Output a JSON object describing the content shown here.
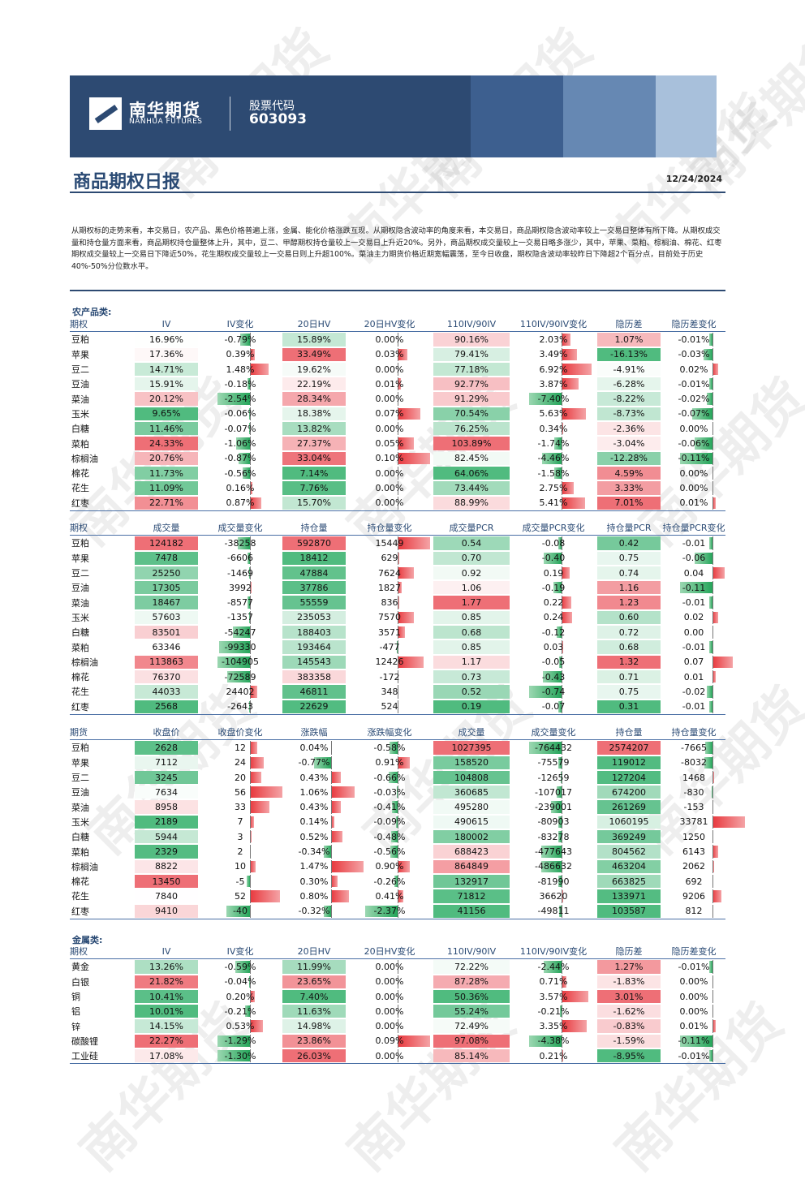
{
  "header": {
    "brand_cn": "南华期货",
    "brand_en": "NANHUA FUTURES",
    "code_label": "股票代码",
    "code_value": "603093",
    "title": "商品期权日报",
    "date": "12/24/2024",
    "watermark": "南华期货"
  },
  "summary": "从期权标的走势来看，本交易日，农产品、黑色价格普遍上涨，金属、能化价格涨跌互现。从期权隐含波动率的角度来看，本交易日，商品期权隐含波动率较上一交易日整体有所下降。从期权成交量和持仓量方面来看，商品期权持仓量整体上升，其中，豆二、甲醇期权持仓量较上一交易日上升近20%。另外，商品期权成交量较上一交易日略多涨少，其中，苹果、菜粕、棕榈油、棉花、红枣期权成交量较上一交易日下降近50%，花生期权成交量较上一交易日则上升超100%。菜油主力期货价格近期宽幅震荡，至今日收盘，期权隐含波动率较昨日下降超2个百分点，目前处于历史40%-50%分位数水平。",
  "colors": {
    "red": "#e8383d",
    "green": "#25a55a",
    "navy": "#2d4a72"
  },
  "sections": {
    "agri": "农产品类:",
    "metal": "金属类:"
  },
  "tables": [
    {
      "id": "agri-iv",
      "headers": [
        "期权",
        "IV",
        "IV变化",
        "20日HV",
        "20日HV变化",
        "110IV/90IV",
        "110IV/90IV变化",
        "隐历差",
        "隐历差变化"
      ],
      "rows": [
        [
          "豆粕",
          "16.96%",
          "-0.79%",
          "15.89%",
          "0.00%",
          "90.16%",
          "2.03%",
          "1.07%",
          "-0.01%"
        ],
        [
          "苹果",
          "17.36%",
          "0.39%",
          "33.49%",
          "0.03%",
          "79.41%",
          "3.49%",
          "-16.13%",
          "-0.03%"
        ],
        [
          "豆二",
          "14.71%",
          "1.48%",
          "19.62%",
          "0.00%",
          "77.18%",
          "6.92%",
          "-4.91%",
          "0.02%"
        ],
        [
          "豆油",
          "15.91%",
          "-0.18%",
          "22.19%",
          "0.01%",
          "92.77%",
          "3.87%",
          "-6.28%",
          "-0.01%"
        ],
        [
          "菜油",
          "20.12%",
          "-2.54%",
          "28.34%",
          "0.00%",
          "91.29%",
          "-7.40%",
          "-8.22%",
          "-0.02%"
        ],
        [
          "玉米",
          "9.65%",
          "-0.06%",
          "18.38%",
          "0.07%",
          "70.54%",
          "5.63%",
          "-8.73%",
          "-0.07%"
        ],
        [
          "白糖",
          "11.46%",
          "-0.07%",
          "13.82%",
          "0.00%",
          "76.25%",
          "0.34%",
          "-2.36%",
          "0.00%"
        ],
        [
          "菜粕",
          "24.33%",
          "-1.06%",
          "27.37%",
          "0.05%",
          "103.89%",
          "-1.74%",
          "-3.04%",
          "-0.06%"
        ],
        [
          "棕榈油",
          "20.76%",
          "-0.87%",
          "33.04%",
          "0.10%",
          "82.45%",
          "-4.46%",
          "-12.28%",
          "-0.11%"
        ],
        [
          "棉花",
          "11.73%",
          "-0.56%",
          "7.14%",
          "0.00%",
          "64.06%",
          "-1.58%",
          "4.59%",
          "0.00%"
        ],
        [
          "花生",
          "11.09%",
          "0.16%",
          "7.76%",
          "0.00%",
          "73.44%",
          "2.75%",
          "3.33%",
          "0.00%"
        ],
        [
          "红枣",
          "22.71%",
          "0.87%",
          "15.70%",
          "0.00%",
          "88.99%",
          "5.41%",
          "7.01%",
          "0.01%"
        ]
      ]
    },
    {
      "id": "agri-volume",
      "headers": [
        "期权",
        "成交量",
        "成交量变化",
        "持仓量",
        "持仓量变化",
        "成交量PCR",
        "成交量PCR变化",
        "持仓量PCR",
        "持仓量PCR变化"
      ],
      "rows": [
        [
          "豆粕",
          "124182",
          "-38258",
          "592870",
          "15449",
          "0.54",
          "-0.08",
          "0.42",
          "-0.01"
        ],
        [
          "苹果",
          "7478",
          "-6606",
          "18412",
          "629",
          "0.70",
          "-0.40",
          "0.75",
          "-0.06"
        ],
        [
          "豆二",
          "25250",
          "-1469",
          "47884",
          "7624",
          "0.92",
          "0.19",
          "0.74",
          "0.04"
        ],
        [
          "豆油",
          "17305",
          "3992",
          "37786",
          "1827",
          "1.06",
          "-0.19",
          "1.16",
          "-0.11"
        ],
        [
          "菜油",
          "18467",
          "-8577",
          "55559",
          "836",
          "1.77",
          "0.22",
          "1.23",
          "-0.01"
        ],
        [
          "玉米",
          "57603",
          "-1357",
          "235053",
          "7570",
          "0.85",
          "0.24",
          "0.60",
          "0.02"
        ],
        [
          "白糖",
          "83501",
          "-54247",
          "188403",
          "3571",
          "0.68",
          "-0.12",
          "0.72",
          "0.00"
        ],
        [
          "菜粕",
          "63346",
          "-99330",
          "193464",
          "-477",
          "0.85",
          "0.03",
          "0.68",
          "-0.01"
        ],
        [
          "棕榈油",
          "113863",
          "-104905",
          "145543",
          "12426",
          "1.17",
          "-0.05",
          "1.32",
          "0.07"
        ],
        [
          "棉花",
          "76370",
          "-72589",
          "383358",
          "-172",
          "0.73",
          "-0.43",
          "0.71",
          "0.01"
        ],
        [
          "花生",
          "44033",
          "24402",
          "46811",
          "348",
          "0.52",
          "-0.74",
          "0.75",
          "-0.02"
        ],
        [
          "红枣",
          "2568",
          "-2643",
          "22629",
          "524",
          "0.19",
          "-0.07",
          "0.31",
          "-0.01"
        ]
      ]
    },
    {
      "id": "agri-futures",
      "headers": [
        "期货",
        "收盘价",
        "收盘价变化",
        "涨跌幅",
        "涨跌幅变化",
        "成交量",
        "成交量变化",
        "持仓量",
        "持仓量变化"
      ],
      "rows": [
        [
          "豆粕",
          "2628",
          "12",
          "0.04%",
          "-0.58%",
          "1027395",
          "-764432",
          "2574207",
          "-7665"
        ],
        [
          "苹果",
          "7112",
          "24",
          "-0.77%",
          "0.91%",
          "158520",
          "-75579",
          "119012",
          "-8032"
        ],
        [
          "豆二",
          "3245",
          "20",
          "0.43%",
          "-0.66%",
          "104808",
          "-12659",
          "127204",
          "1468"
        ],
        [
          "豆油",
          "7634",
          "56",
          "1.06%",
          "-0.03%",
          "360685",
          "-107017",
          "674200",
          "-830"
        ],
        [
          "菜油",
          "8958",
          "33",
          "0.43%",
          "-0.41%",
          "495280",
          "-239001",
          "261269",
          "-153"
        ],
        [
          "玉米",
          "2189",
          "7",
          "0.14%",
          "-0.09%",
          "490615",
          "-80903",
          "1060195",
          "33781"
        ],
        [
          "白糖",
          "5944",
          "3",
          "0.52%",
          "-0.48%",
          "180002",
          "-83278",
          "369249",
          "1250"
        ],
        [
          "菜粕",
          "2329",
          "2",
          "-0.34%",
          "-0.56%",
          "688423",
          "-477643",
          "804562",
          "6143"
        ],
        [
          "棕榈油",
          "8822",
          "10",
          "1.47%",
          "0.90%",
          "864849",
          "-486632",
          "463204",
          "2062"
        ],
        [
          "棉花",
          "13450",
          "-5",
          "0.30%",
          "-0.26%",
          "132917",
          "-81990",
          "663825",
          "692"
        ],
        [
          "花生",
          "7840",
          "52",
          "0.80%",
          "0.41%",
          "71812",
          "36620",
          "133971",
          "9206"
        ],
        [
          "红枣",
          "9410",
          "-40",
          "-0.32%",
          "-2.37%",
          "41156",
          "-49811",
          "103587",
          "812"
        ]
      ]
    },
    {
      "id": "metal-iv",
      "headers": [
        "期权",
        "IV",
        "IV变化",
        "20日HV",
        "20日HV变化",
        "110IV/90IV",
        "110IV/90IV变化",
        "隐历差",
        "隐历差变化"
      ],
      "rows": [
        [
          "黄金",
          "13.26%",
          "-0.59%",
          "11.99%",
          "0.00%",
          "72.22%",
          "-2.44%",
          "1.27%",
          "-0.01%"
        ],
        [
          "白银",
          "21.82%",
          "-0.04%",
          "23.65%",
          "0.00%",
          "87.28%",
          "0.71%",
          "-1.83%",
          "0.00%"
        ],
        [
          "铜",
          "10.41%",
          "0.20%",
          "7.40%",
          "0.00%",
          "50.36%",
          "3.57%",
          "3.01%",
          "0.00%"
        ],
        [
          "铝",
          "10.01%",
          "-0.21%",
          "11.63%",
          "0.00%",
          "55.24%",
          "-0.21%",
          "-1.62%",
          "0.00%"
        ],
        [
          "锌",
          "14.15%",
          "0.53%",
          "14.98%",
          "0.00%",
          "72.49%",
          "3.35%",
          "-0.83%",
          "0.01%"
        ],
        [
          "碳酸锂",
          "22.27%",
          "-1.29%",
          "23.86%",
          "0.09%",
          "97.08%",
          "-4.38%",
          "-1.59%",
          "-0.11%"
        ],
        [
          "工业硅",
          "17.08%",
          "-1.30%",
          "26.03%",
          "0.00%",
          "85.14%",
          "0.21%",
          "-8.95%",
          "-0.01%"
        ]
      ]
    }
  ]
}
